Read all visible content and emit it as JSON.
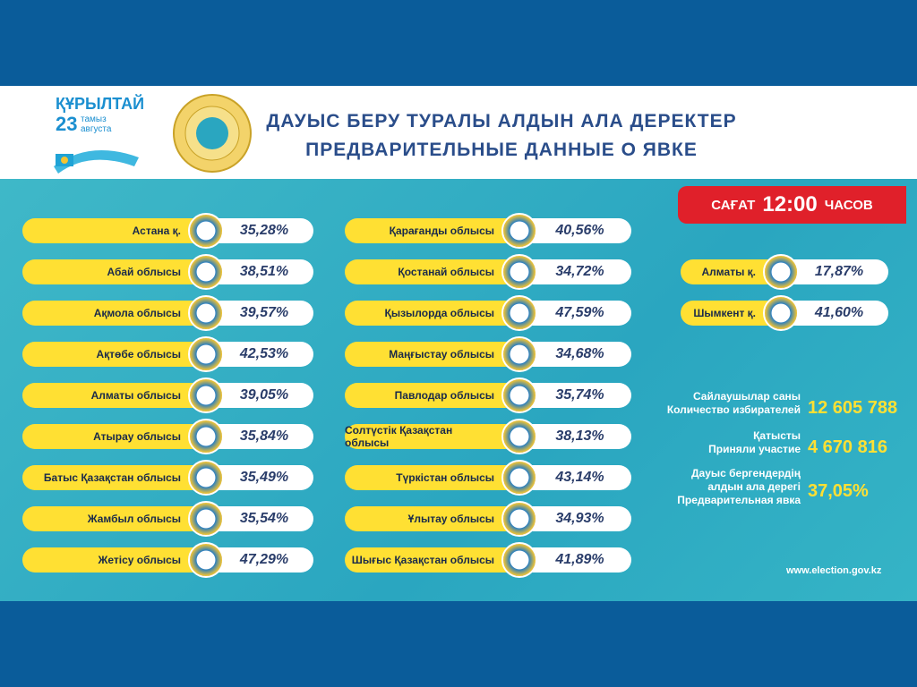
{
  "header": {
    "logo": {
      "title": "ҚҰРЫЛТАЙ",
      "day": "23",
      "month_kz": "тамыз",
      "month_ru": "августа"
    },
    "title_kz": "ДАУЫС БЕРУ ТУРАЛЫ АЛДЫН АЛА ДЕРЕКТЕР",
    "title_ru": "ПРЕДВАРИТЕЛЬНЫЕ ДАННЫЕ О ЯВКЕ"
  },
  "time": {
    "label_kz": "САҒАТ",
    "value": "12:00",
    "label_ru": "ЧАСОВ"
  },
  "columns": [
    [
      {
        "name": "Астана қ.",
        "value": "35,28%"
      },
      {
        "name": "Абай облысы",
        "value": "38,51%"
      },
      {
        "name": "Ақмола облысы",
        "value": "39,57%"
      },
      {
        "name": "Ақтөбе облысы",
        "value": "42,53%"
      },
      {
        "name": "Алматы облысы",
        "value": "39,05%"
      },
      {
        "name": "Атырау облысы",
        "value": "35,84%"
      },
      {
        "name": "Батыс Қазақстан облысы",
        "value": "35,49%"
      },
      {
        "name": "Жамбыл облысы",
        "value": "35,54%"
      },
      {
        "name": "Жетісу облысы",
        "value": "47,29%"
      }
    ],
    [
      {
        "name": "Қарағанды облысы",
        "value": "40,56%"
      },
      {
        "name": "Қостанай облысы",
        "value": "34,72%"
      },
      {
        "name": "Қызылорда облысы",
        "value": "47,59%"
      },
      {
        "name": "Маңғыстау облысы",
        "value": "34,68%"
      },
      {
        "name": "Павлодар облысы",
        "value": "35,74%"
      },
      {
        "name": "Солтүстік Қазақстан облысы",
        "value": "38,13%"
      },
      {
        "name": "Түркістан облысы",
        "value": "43,14%"
      },
      {
        "name": "Ұлытау облысы",
        "value": "34,93%"
      },
      {
        "name": "Шығыс Қазақстан облысы",
        "value": "41,89%"
      }
    ],
    [
      {
        "name": "Алматы қ.",
        "value": "17,87%"
      },
      {
        "name": "Шымкент қ.",
        "value": "41,60%"
      }
    ]
  ],
  "stats": [
    {
      "lines": [
        "Сайлаушылар саны",
        "Количество избирателей"
      ],
      "value": "12 605 788"
    },
    {
      "lines": [
        "Қатысты",
        "Приняли участие"
      ],
      "value": "4 670 816"
    },
    {
      "lines": [
        "Дауыс бергендердің",
        "алдын ала дерегі",
        "Предварительная явка"
      ],
      "value": "37,05%"
    }
  ],
  "footer": "www.election.gov.kz"
}
